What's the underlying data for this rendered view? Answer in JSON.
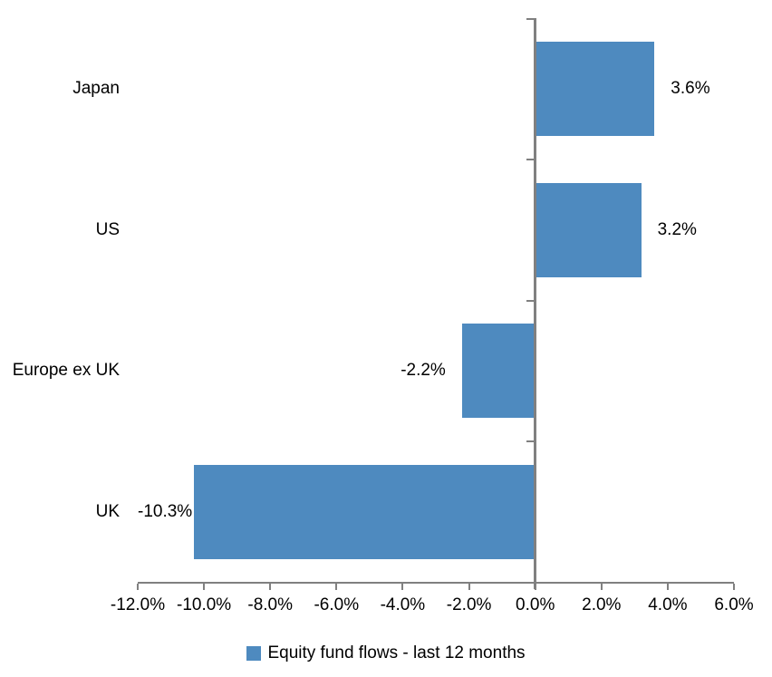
{
  "chart_data": {
    "type": "bar",
    "orientation": "horizontal",
    "title": "",
    "categories": [
      "Japan",
      "US",
      "Europe ex UK",
      "UK"
    ],
    "series": [
      {
        "name": "Equity fund flows - last 12 months",
        "values": [
          3.6,
          3.2,
          -2.2,
          -10.3
        ],
        "data_labels": [
          "3.6%",
          "3.2%",
          "-2.2%",
          "-10.3%"
        ]
      }
    ],
    "xlim": [
      -12,
      6
    ],
    "x_ticks": [
      -12,
      -10,
      -8,
      -6,
      -4,
      -2,
      0,
      2,
      4,
      6
    ],
    "x_tick_labels": [
      "-12.0%",
      "-10.0%",
      "-8.0%",
      "-6.0%",
      "-4.0%",
      "-2.0%",
      "0.0%",
      "2.0%",
      "4.0%",
      "6.0%"
    ],
    "grid": "off",
    "legend_position": "bottom",
    "colors": {
      "bar": "#4E8ABF",
      "axis": "#808080",
      "text": "#000000",
      "background": "#FFFFFF"
    }
  }
}
